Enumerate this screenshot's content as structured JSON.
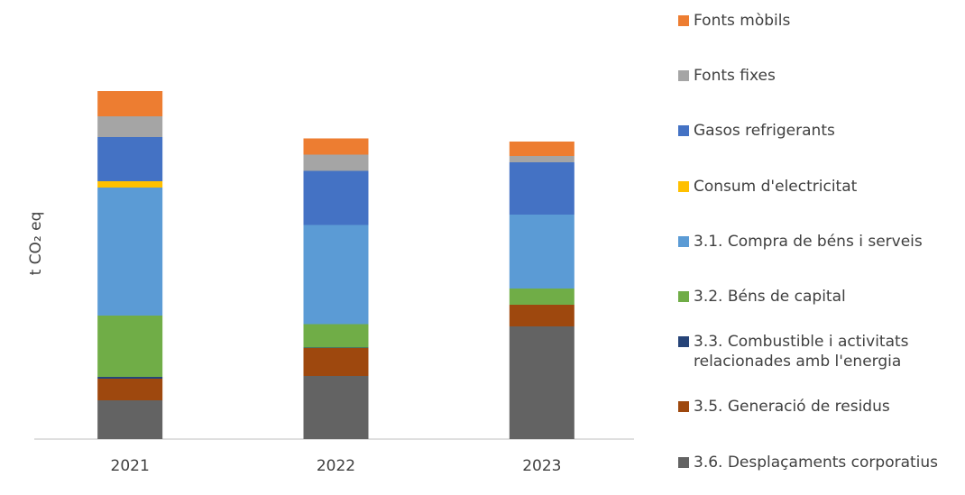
{
  "chart_data": {
    "type": "stacked_bar",
    "y_label": "t CO₂ eq",
    "categories": [
      "2021",
      "2022",
      "2023"
    ],
    "ylim": [
      0,
      400
    ],
    "series": [
      {
        "name": "3.6. Desplaçaments corporatius",
        "color": "#636363",
        "values": [
          43,
          70,
          125
        ]
      },
      {
        "name": "3.5. Generació de residus",
        "color": "#9e480e",
        "values": [
          24,
          31,
          24
        ]
      },
      {
        "name": "3.3. Combustible i activitats relacionades amb l'energia",
        "color": "#264478",
        "values": [
          2,
          0.5,
          0
        ]
      },
      {
        "name": "3.2. Béns de capital",
        "color": "#70ad47",
        "values": [
          68,
          26,
          18
        ]
      },
      {
        "name": "3.1. Compra de béns i serveis",
        "color": "#5b9bd5",
        "values": [
          142,
          110,
          82
        ]
      },
      {
        "name": "Consum d'electricitat",
        "color": "#ffc000",
        "values": [
          7,
          0,
          0
        ]
      },
      {
        "name": "Gasos refrigerants",
        "color": "#4472c4",
        "values": [
          49,
          60,
          58
        ]
      },
      {
        "name": "Fonts fixes",
        "color": "#a5a5a5",
        "values": [
          23,
          18,
          7
        ]
      },
      {
        "name": "Fonts mòbils",
        "color": "#ed7d31",
        "values": [
          28,
          18,
          16
        ]
      }
    ]
  }
}
